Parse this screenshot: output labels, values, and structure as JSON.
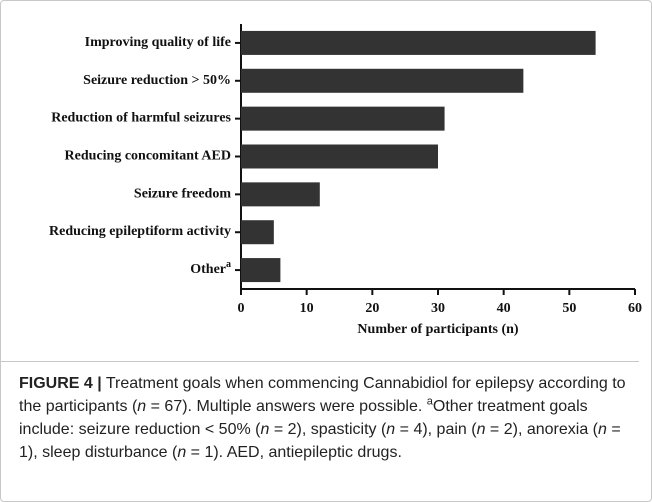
{
  "chart_data": {
    "type": "hbar",
    "categories": [
      "Improving quality of life",
      "Seizure reduction > 50%",
      "Reduction of harmful seizures",
      "Reducing concomitant AED",
      "Seizure freedom",
      "Reducing epileptiform activity",
      "Other"
    ],
    "category_superscripts": [
      null,
      null,
      null,
      null,
      null,
      null,
      "a"
    ],
    "values": [
      54,
      43,
      31,
      30,
      12,
      5,
      6
    ],
    "color": "#333333",
    "xlim": [
      0,
      60
    ],
    "xticks": [
      0,
      10,
      20,
      30,
      40,
      50,
      60
    ],
    "x_label": "Number of participants (n)"
  },
  "caption": {
    "label": "FIGURE 4 |",
    "parts": [
      {
        "text": " Treatment goals when commencing Cannabidiol for epilepsy according to the participants (",
        "style": "normal"
      },
      {
        "text": "n",
        "style": "italic"
      },
      {
        "text": " = 67). Multiple answers were possible. ",
        "style": "normal"
      },
      {
        "text": "a",
        "style": "sup"
      },
      {
        "text": "Other treatment goals include: seizure reduction < 50% (",
        "style": "normal"
      },
      {
        "text": "n",
        "style": "italic"
      },
      {
        "text": " = 2), spasticity (",
        "style": "normal"
      },
      {
        "text": "n",
        "style": "italic"
      },
      {
        "text": " = 4), pain (",
        "style": "normal"
      },
      {
        "text": "n",
        "style": "italic"
      },
      {
        "text": " = 2), anorexia (",
        "style": "normal"
      },
      {
        "text": "n",
        "style": "italic"
      },
      {
        "text": " = 1), sleep disturbance (",
        "style": "normal"
      },
      {
        "text": "n",
        "style": "italic"
      },
      {
        "text": " = 1). AED, antiepileptic drugs.",
        "style": "normal"
      }
    ]
  }
}
